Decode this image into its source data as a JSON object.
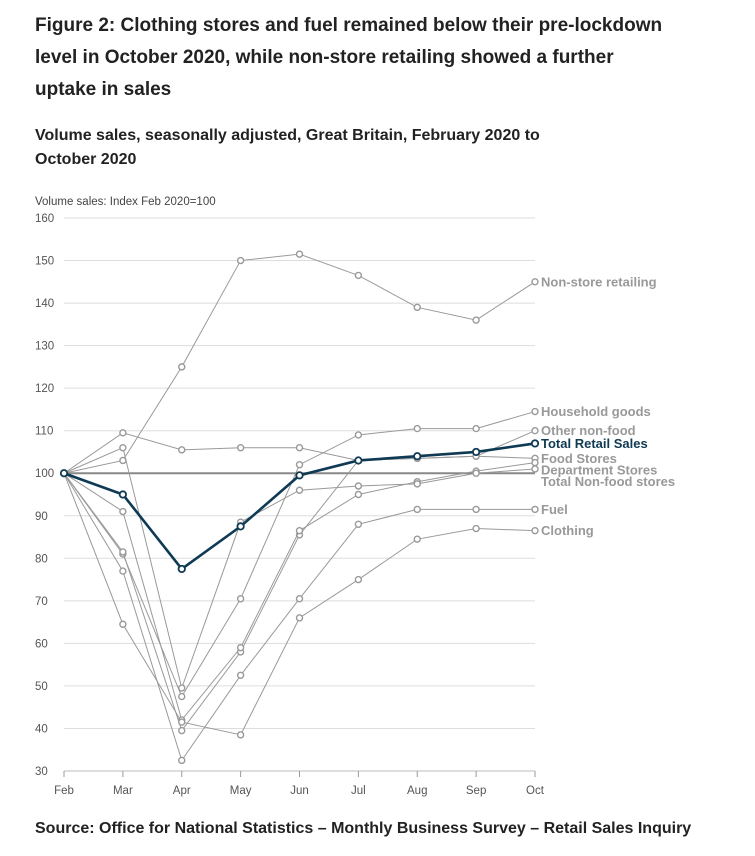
{
  "title": "Figure 2: Clothing stores and fuel remained below their pre-lockdown level in October 2020, while non-store retailing showed a further uptake in sales",
  "subtitle": "Volume sales, seasonally adjusted, Great Britain, February 2020 to October 2020",
  "source": "Source: Office for National Statistics – Monthly Business Survey – Retail Sales Inquiry",
  "colors": {
    "highlight": "#0f3a53",
    "series": "#999999",
    "grid": "#dddddd",
    "baseline": "#888888",
    "label": "#999999",
    "axis": "#555555"
  },
  "chart_data": {
    "type": "line",
    "title": "Figure 2: Clothing stores and fuel remained below their pre-lockdown level in October 2020, while non-store retailing showed a further uptake in sales",
    "ylabel": "Volume sales: Index Feb 2020=100",
    "xlabel": "",
    "categories": [
      "Feb",
      "Mar",
      "Apr",
      "May",
      "Jun",
      "Jul",
      "Aug",
      "Sep",
      "Oct"
    ],
    "ylim": [
      30,
      160
    ],
    "yticks": [
      30,
      40,
      50,
      60,
      70,
      80,
      90,
      100,
      110,
      120,
      130,
      140,
      150,
      160
    ],
    "grid": true,
    "series": [
      {
        "name": "Non-store retailing",
        "values": [
          100,
          103,
          125,
          150,
          151.5,
          146.5,
          139,
          136,
          145
        ],
        "highlight": false
      },
      {
        "name": "Household goods",
        "values": [
          100,
          81,
          47.5,
          70.5,
          102,
          109,
          110.5,
          110.5,
          114.5
        ],
        "highlight": false
      },
      {
        "name": "Other non-food",
        "values": [
          100,
          81.5,
          39.5,
          58,
          85.5,
          103,
          103.5,
          104,
          110
        ],
        "highlight": false
      },
      {
        "name": "Total Retail Sales",
        "values": [
          100,
          95,
          77.5,
          87.5,
          99.5,
          103,
          104,
          105,
          107
        ],
        "highlight": true
      },
      {
        "name": "Food Stores",
        "values": [
          100,
          109.5,
          105.5,
          106,
          106,
          103,
          103.5,
          104,
          103.5
        ],
        "highlight": false
      },
      {
        "name": "Department Stores",
        "values": [
          100,
          91,
          42,
          59,
          86.5,
          95,
          98,
          100.5,
          102.5
        ],
        "highlight": false
      },
      {
        "name": "Total Non-food stores",
        "values": [
          100,
          106,
          49.5,
          88.5,
          96,
          97,
          97.5,
          100,
          101
        ],
        "highlight": false
      },
      {
        "name": "Fuel",
        "values": [
          100,
          77,
          32.5,
          52.5,
          70.5,
          88,
          91.5,
          91.5,
          91.5
        ],
        "highlight": false
      },
      {
        "name": "Clothing",
        "values": [
          100,
          64.5,
          41.5,
          38.5,
          66,
          75,
          84.5,
          87,
          86.5
        ],
        "highlight": false
      }
    ],
    "baseline": 100
  }
}
